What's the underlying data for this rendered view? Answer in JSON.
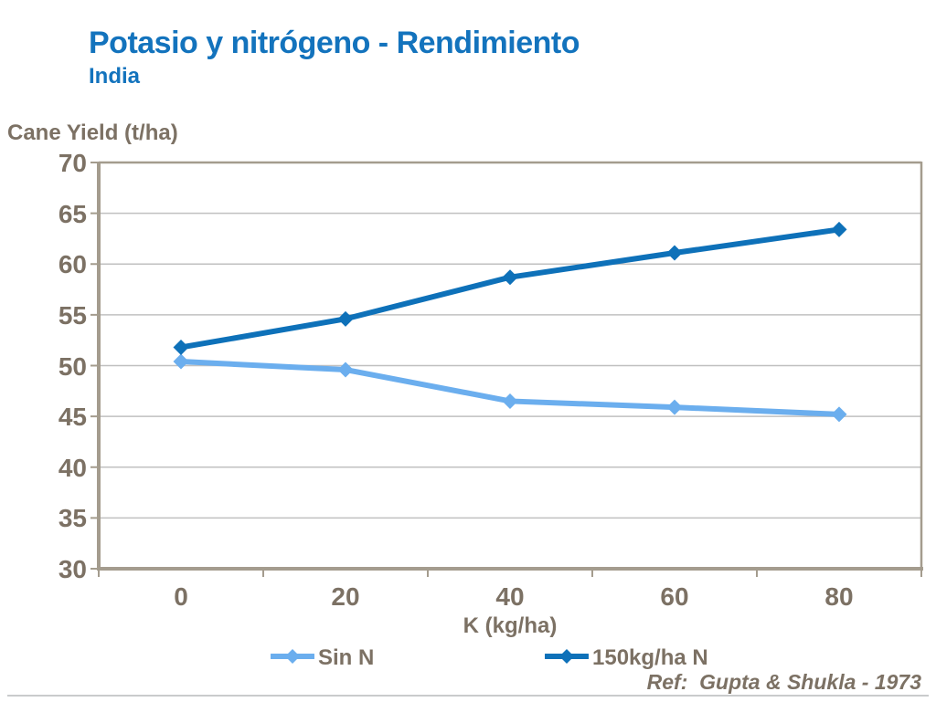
{
  "header": {
    "title": "Potasio y nitrógeno - Rendimiento",
    "subtitle": "India"
  },
  "footer": {
    "ref": "Ref:  Gupta & Shukla - 1973"
  },
  "colors": {
    "title_blue": "#1373BD",
    "label_taupe": "#7C7164",
    "gridline": "#C0C0C0",
    "axis": "#A49C8E",
    "divider": "#C9CBCC",
    "series_light": "#6BAEEE",
    "series_dark": "#0E71B9"
  },
  "chart_data": {
    "type": "line",
    "title": "Potasio y nitrógeno - Rendimiento",
    "subtitle": "India",
    "x": [
      0,
      20,
      40,
      60,
      80
    ],
    "xlabel": "K (kg/ha)",
    "ylabel": "Cane Yield (t/ha)",
    "ylim": [
      30,
      70
    ],
    "ytick_step": 5,
    "yticks": [
      30,
      35,
      40,
      45,
      50,
      55,
      60,
      65,
      70
    ],
    "grid": true,
    "marker": "diamond",
    "legend_position": "bottom",
    "series": [
      {
        "name": "Sin N",
        "color": "#6BAEEE",
        "values": [
          50.4,
          49.6,
          46.5,
          45.9,
          45.2
        ]
      },
      {
        "name": "150kg/ha N",
        "color": "#0E71B9",
        "values": [
          51.8,
          54.6,
          58.7,
          61.1,
          63.4
        ]
      }
    ],
    "annotation": "Ref:  Gupta & Shukla - 1973"
  }
}
